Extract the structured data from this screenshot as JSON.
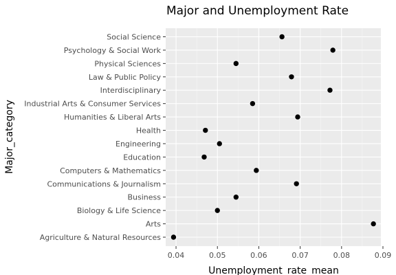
{
  "chart_data": {
    "type": "scatter",
    "title": "Major and Unemployment Rate",
    "xlabel": "Unemployment_rate_mean",
    "ylabel": "Major_category",
    "xlim": [
      0.0375,
      0.0895
    ],
    "xticks": [
      0.04,
      0.05,
      0.06,
      0.07,
      0.08,
      0.09
    ],
    "xtick_labels": [
      "0.04",
      "0.05",
      "0.06",
      "0.07",
      "0.08",
      "0.09"
    ],
    "grid": true,
    "categories": [
      "Agriculture & Natural Resources",
      "Arts",
      "Biology & Life Science",
      "Business",
      "Communications & Journalism",
      "Computers & Mathematics",
      "Education",
      "Engineering",
      "Health",
      "Humanities & Liberal Arts",
      "Industrial Arts & Consumer Services",
      "Interdisciplinary",
      "Law & Public Policy",
      "Physical Sciences",
      "Psychology & Social Work",
      "Social Science"
    ],
    "values": [
      0.0394,
      0.0877,
      0.05,
      0.0545,
      0.0691,
      0.0594,
      0.0468,
      0.0505,
      0.0471,
      0.0694,
      0.0585,
      0.0772,
      0.0679,
      0.0545,
      0.0779,
      0.0656
    ]
  }
}
